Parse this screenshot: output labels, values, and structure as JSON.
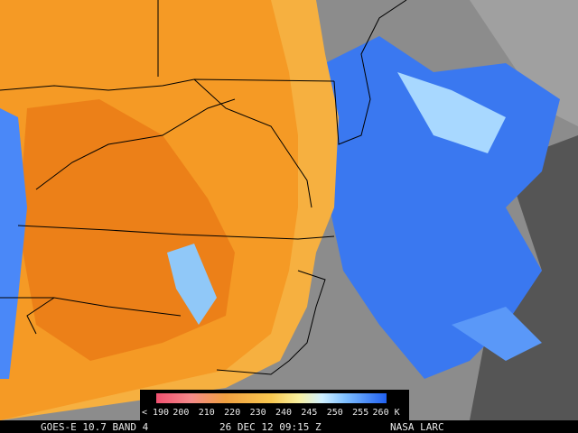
{
  "colorbar": {
    "labels": [
      "< 190",
      "200",
      "210",
      "220",
      "230",
      "240",
      "245",
      "250",
      "255",
      "260 K"
    ]
  },
  "caption": {
    "satellite": "GOES-E 10.7 BAND 4",
    "time": "26 DEC 12 09:15 Z",
    "source": "NASA LARC"
  }
}
